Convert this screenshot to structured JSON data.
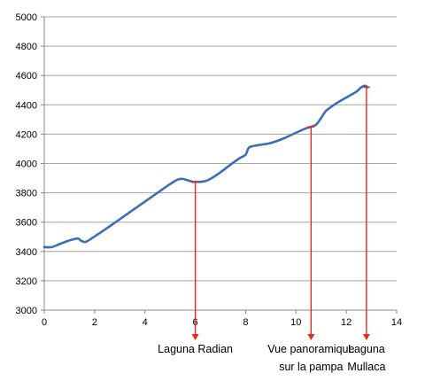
{
  "chart_data": {
    "type": "line",
    "title": "",
    "xlabel": "",
    "ylabel": "",
    "xlim": [
      0,
      14
    ],
    "ylim": [
      3000,
      5000
    ],
    "xticks": [
      "0",
      "2",
      "4",
      "6",
      "8",
      "10",
      "12",
      "14"
    ],
    "yticks": [
      "3000",
      "3200",
      "3400",
      "3600",
      "3800",
      "4000",
      "4200",
      "4400",
      "4600",
      "4800",
      "5000"
    ],
    "grid": "horizontal",
    "legend": "none",
    "series": [
      {
        "color": "#3a6fb5",
        "points": [
          [
            0.0,
            3430
          ],
          [
            0.3,
            3430
          ],
          [
            0.6,
            3450
          ],
          [
            0.9,
            3470
          ],
          [
            1.2,
            3485
          ],
          [
            1.35,
            3488
          ],
          [
            1.45,
            3475
          ],
          [
            1.6,
            3465
          ],
          [
            1.8,
            3480
          ],
          [
            2.5,
            3560
          ],
          [
            3.0,
            3620
          ],
          [
            3.5,
            3680
          ],
          [
            4.0,
            3740
          ],
          [
            4.5,
            3800
          ],
          [
            5.0,
            3860
          ],
          [
            5.3,
            3890
          ],
          [
            5.5,
            3895
          ],
          [
            5.7,
            3885
          ],
          [
            5.9,
            3875
          ],
          [
            6.0,
            3875
          ],
          [
            6.2,
            3875
          ],
          [
            6.4,
            3880
          ],
          [
            6.6,
            3895
          ],
          [
            7.0,
            3940
          ],
          [
            7.5,
            4005
          ],
          [
            7.8,
            4040
          ],
          [
            8.0,
            4060
          ],
          [
            8.1,
            4100
          ],
          [
            8.2,
            4115
          ],
          [
            8.5,
            4125
          ],
          [
            9.0,
            4140
          ],
          [
            9.5,
            4170
          ],
          [
            10.0,
            4210
          ],
          [
            10.4,
            4240
          ],
          [
            10.6,
            4250
          ],
          [
            10.8,
            4265
          ],
          [
            11.0,
            4310
          ],
          [
            11.2,
            4360
          ],
          [
            11.6,
            4410
          ],
          [
            12.0,
            4450
          ],
          [
            12.4,
            4490
          ],
          [
            12.6,
            4520
          ],
          [
            12.75,
            4530
          ],
          [
            12.85,
            4520
          ]
        ]
      }
    ],
    "annotations": [
      {
        "x": 6.0,
        "y": 3875,
        "lines": [
          "Laguna Radian"
        ]
      },
      {
        "x": 10.6,
        "y": 4250,
        "lines": [
          "Vue panoramique",
          "sur la pampa"
        ]
      },
      {
        "x": 12.8,
        "y": 4520,
        "lines": [
          "Laguna",
          "Mullaca"
        ]
      }
    ],
    "colors": {
      "line": "#3a6fb5",
      "annotation_arrow": "#e8291c",
      "axis": "#888888",
      "grid": "#a6a6a6"
    }
  }
}
